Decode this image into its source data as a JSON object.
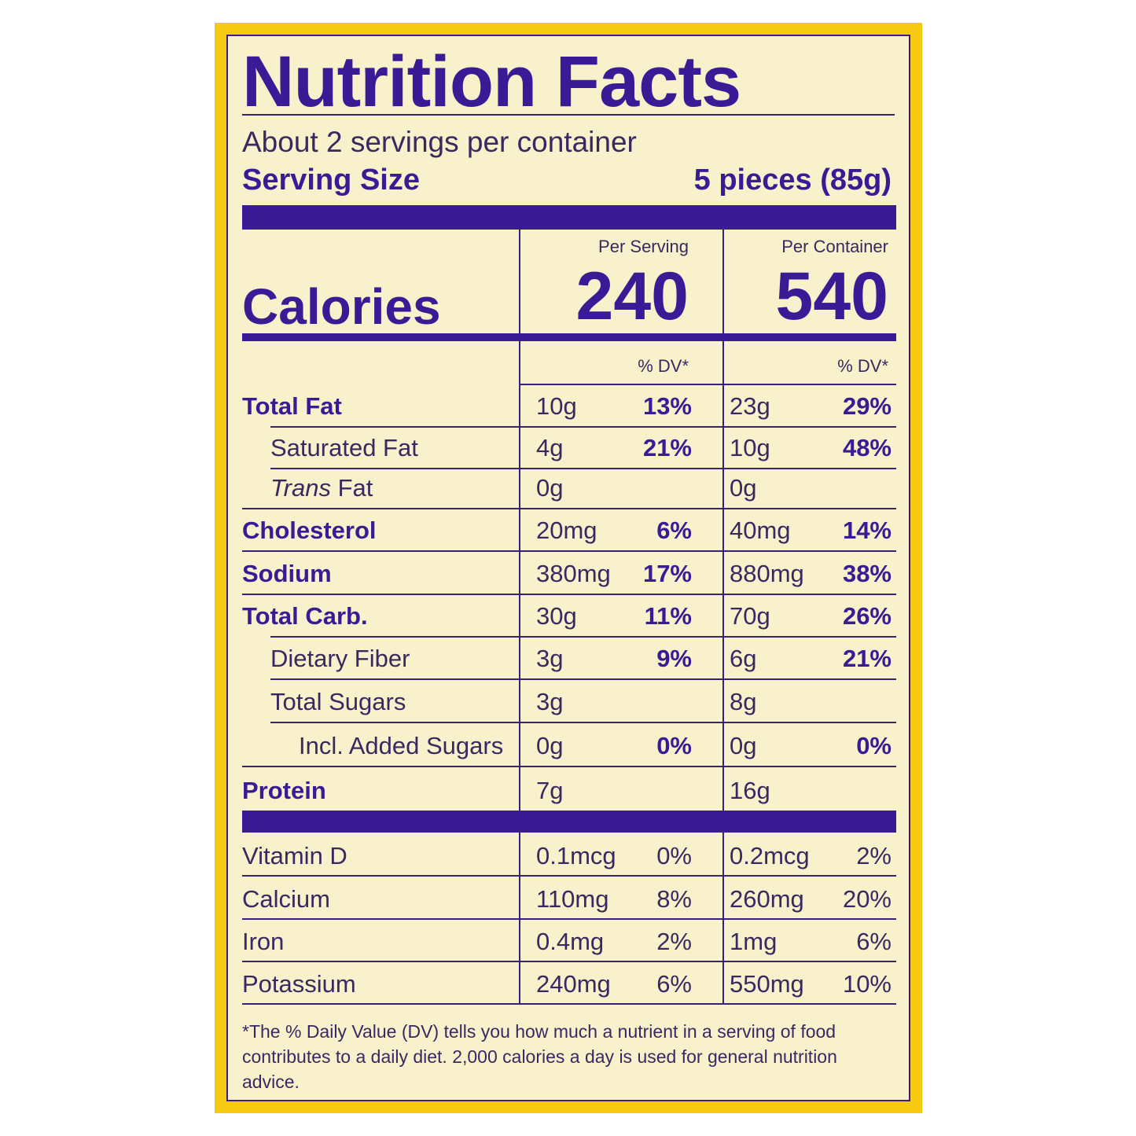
{
  "title": "Nutrition Facts",
  "servings": "About 2 servings per container",
  "serving_size_label": "Serving Size",
  "serving_size_value": "5 pieces (85g)",
  "col_headers": {
    "per_serving": "Per Serving",
    "per_container": "Per Container"
  },
  "calories": {
    "label": "Calories",
    "per_serving": "240",
    "per_container": "540"
  },
  "dv_header": "% DV*",
  "nutrients": [
    {
      "name": "Total Fat",
      "bold": true,
      "indent": 0,
      "s_amt": "10g",
      "s_dv": "13%",
      "c_amt": "23g",
      "c_dv": "29%"
    },
    {
      "name": "Saturated Fat",
      "bold": false,
      "indent": 1,
      "s_amt": "4g",
      "s_dv": "21%",
      "c_amt": "10g",
      "c_dv": "48%"
    },
    {
      "name_italic": "Trans",
      "name": " Fat",
      "bold": false,
      "indent": 1,
      "s_amt": "0g",
      "s_dv": "",
      "c_amt": "0g",
      "c_dv": ""
    },
    {
      "name": "Cholesterol",
      "bold": true,
      "indent": 0,
      "s_amt": "20mg",
      "s_dv": "6%",
      "c_amt": "40mg",
      "c_dv": "14%"
    },
    {
      "name": "Sodium",
      "bold": true,
      "indent": 0,
      "s_amt": "380mg",
      "s_dv": "17%",
      "c_amt": "880mg",
      "c_dv": "38%"
    },
    {
      "name": "Total Carb.",
      "bold": true,
      "indent": 0,
      "s_amt": "30g",
      "s_dv": "11%",
      "c_amt": "70g",
      "c_dv": "26%"
    },
    {
      "name": "Dietary Fiber",
      "bold": false,
      "indent": 1,
      "s_amt": "3g",
      "s_dv": "9%",
      "c_amt": "6g",
      "c_dv": "21%"
    },
    {
      "name": "Total Sugars",
      "bold": false,
      "indent": 1,
      "s_amt": "3g",
      "s_dv": "",
      "c_amt": "8g",
      "c_dv": ""
    },
    {
      "name": "Incl. Added Sugars",
      "bold": false,
      "indent": 2,
      "s_amt": "0g",
      "s_dv": "0%",
      "c_amt": "0g",
      "c_dv": "0%"
    },
    {
      "name": "Protein",
      "bold": true,
      "indent": 0,
      "s_amt": "7g",
      "s_dv": "",
      "c_amt": "16g",
      "c_dv": ""
    }
  ],
  "vitamins": [
    {
      "name": "Vitamin D",
      "s_amt": "0.1mcg",
      "s_dv": "0%",
      "c_amt": "0.2mcg",
      "c_dv": "2%"
    },
    {
      "name": "Calcium",
      "s_amt": "110mg",
      "s_dv": "8%",
      "c_amt": "260mg",
      "c_dv": "20%"
    },
    {
      "name": "Iron",
      "s_amt": "0.4mg",
      "s_dv": "2%",
      "c_amt": "1mg",
      "c_dv": "6%"
    },
    {
      "name": "Potassium",
      "s_amt": "240mg",
      "s_dv": "6%",
      "c_amt": "550mg",
      "c_dv": "10%"
    }
  ],
  "footnote": "*The % Daily Value (DV) tells you how much a nutrient in a serving of food contributes to a daily diet. 2,000 calories a day is used for general nutrition advice.",
  "colors": {
    "border": "#f6c913",
    "label_bg": "#f9f0cc",
    "ink": "#3b1a96"
  }
}
